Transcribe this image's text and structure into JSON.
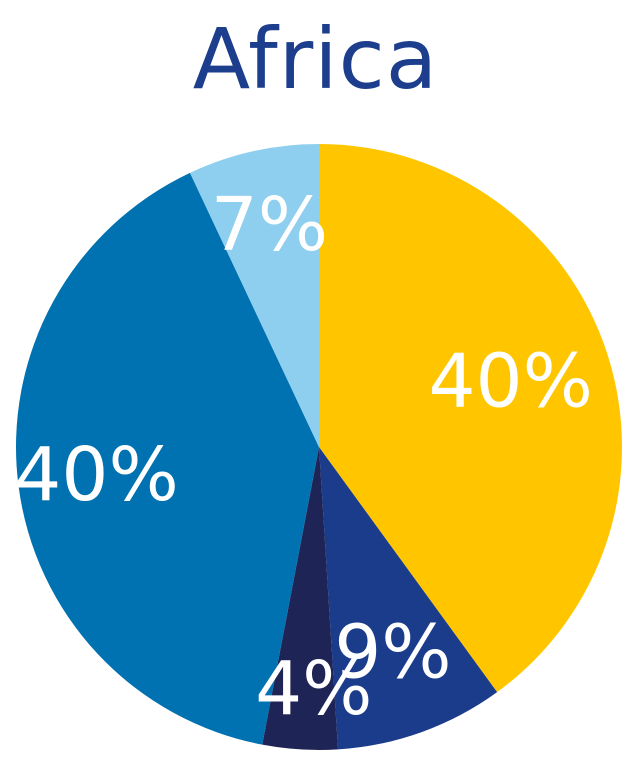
{
  "chart_data": {
    "type": "pie",
    "title": "Africa",
    "start_angle_deg": 0,
    "direction": "clockwise",
    "slices": [
      {
        "value": 40,
        "label": "40%",
        "color": "#ffc600"
      },
      {
        "value": 9,
        "label": "9%",
        "color": "#1b3c8b"
      },
      {
        "value": 4,
        "label": "4%",
        "color": "#1f2456"
      },
      {
        "value": 40,
        "label": "40%",
        "color": "#0072b1"
      },
      {
        "value": 7,
        "label": "7%",
        "color": "#8ecfef"
      }
    ]
  }
}
